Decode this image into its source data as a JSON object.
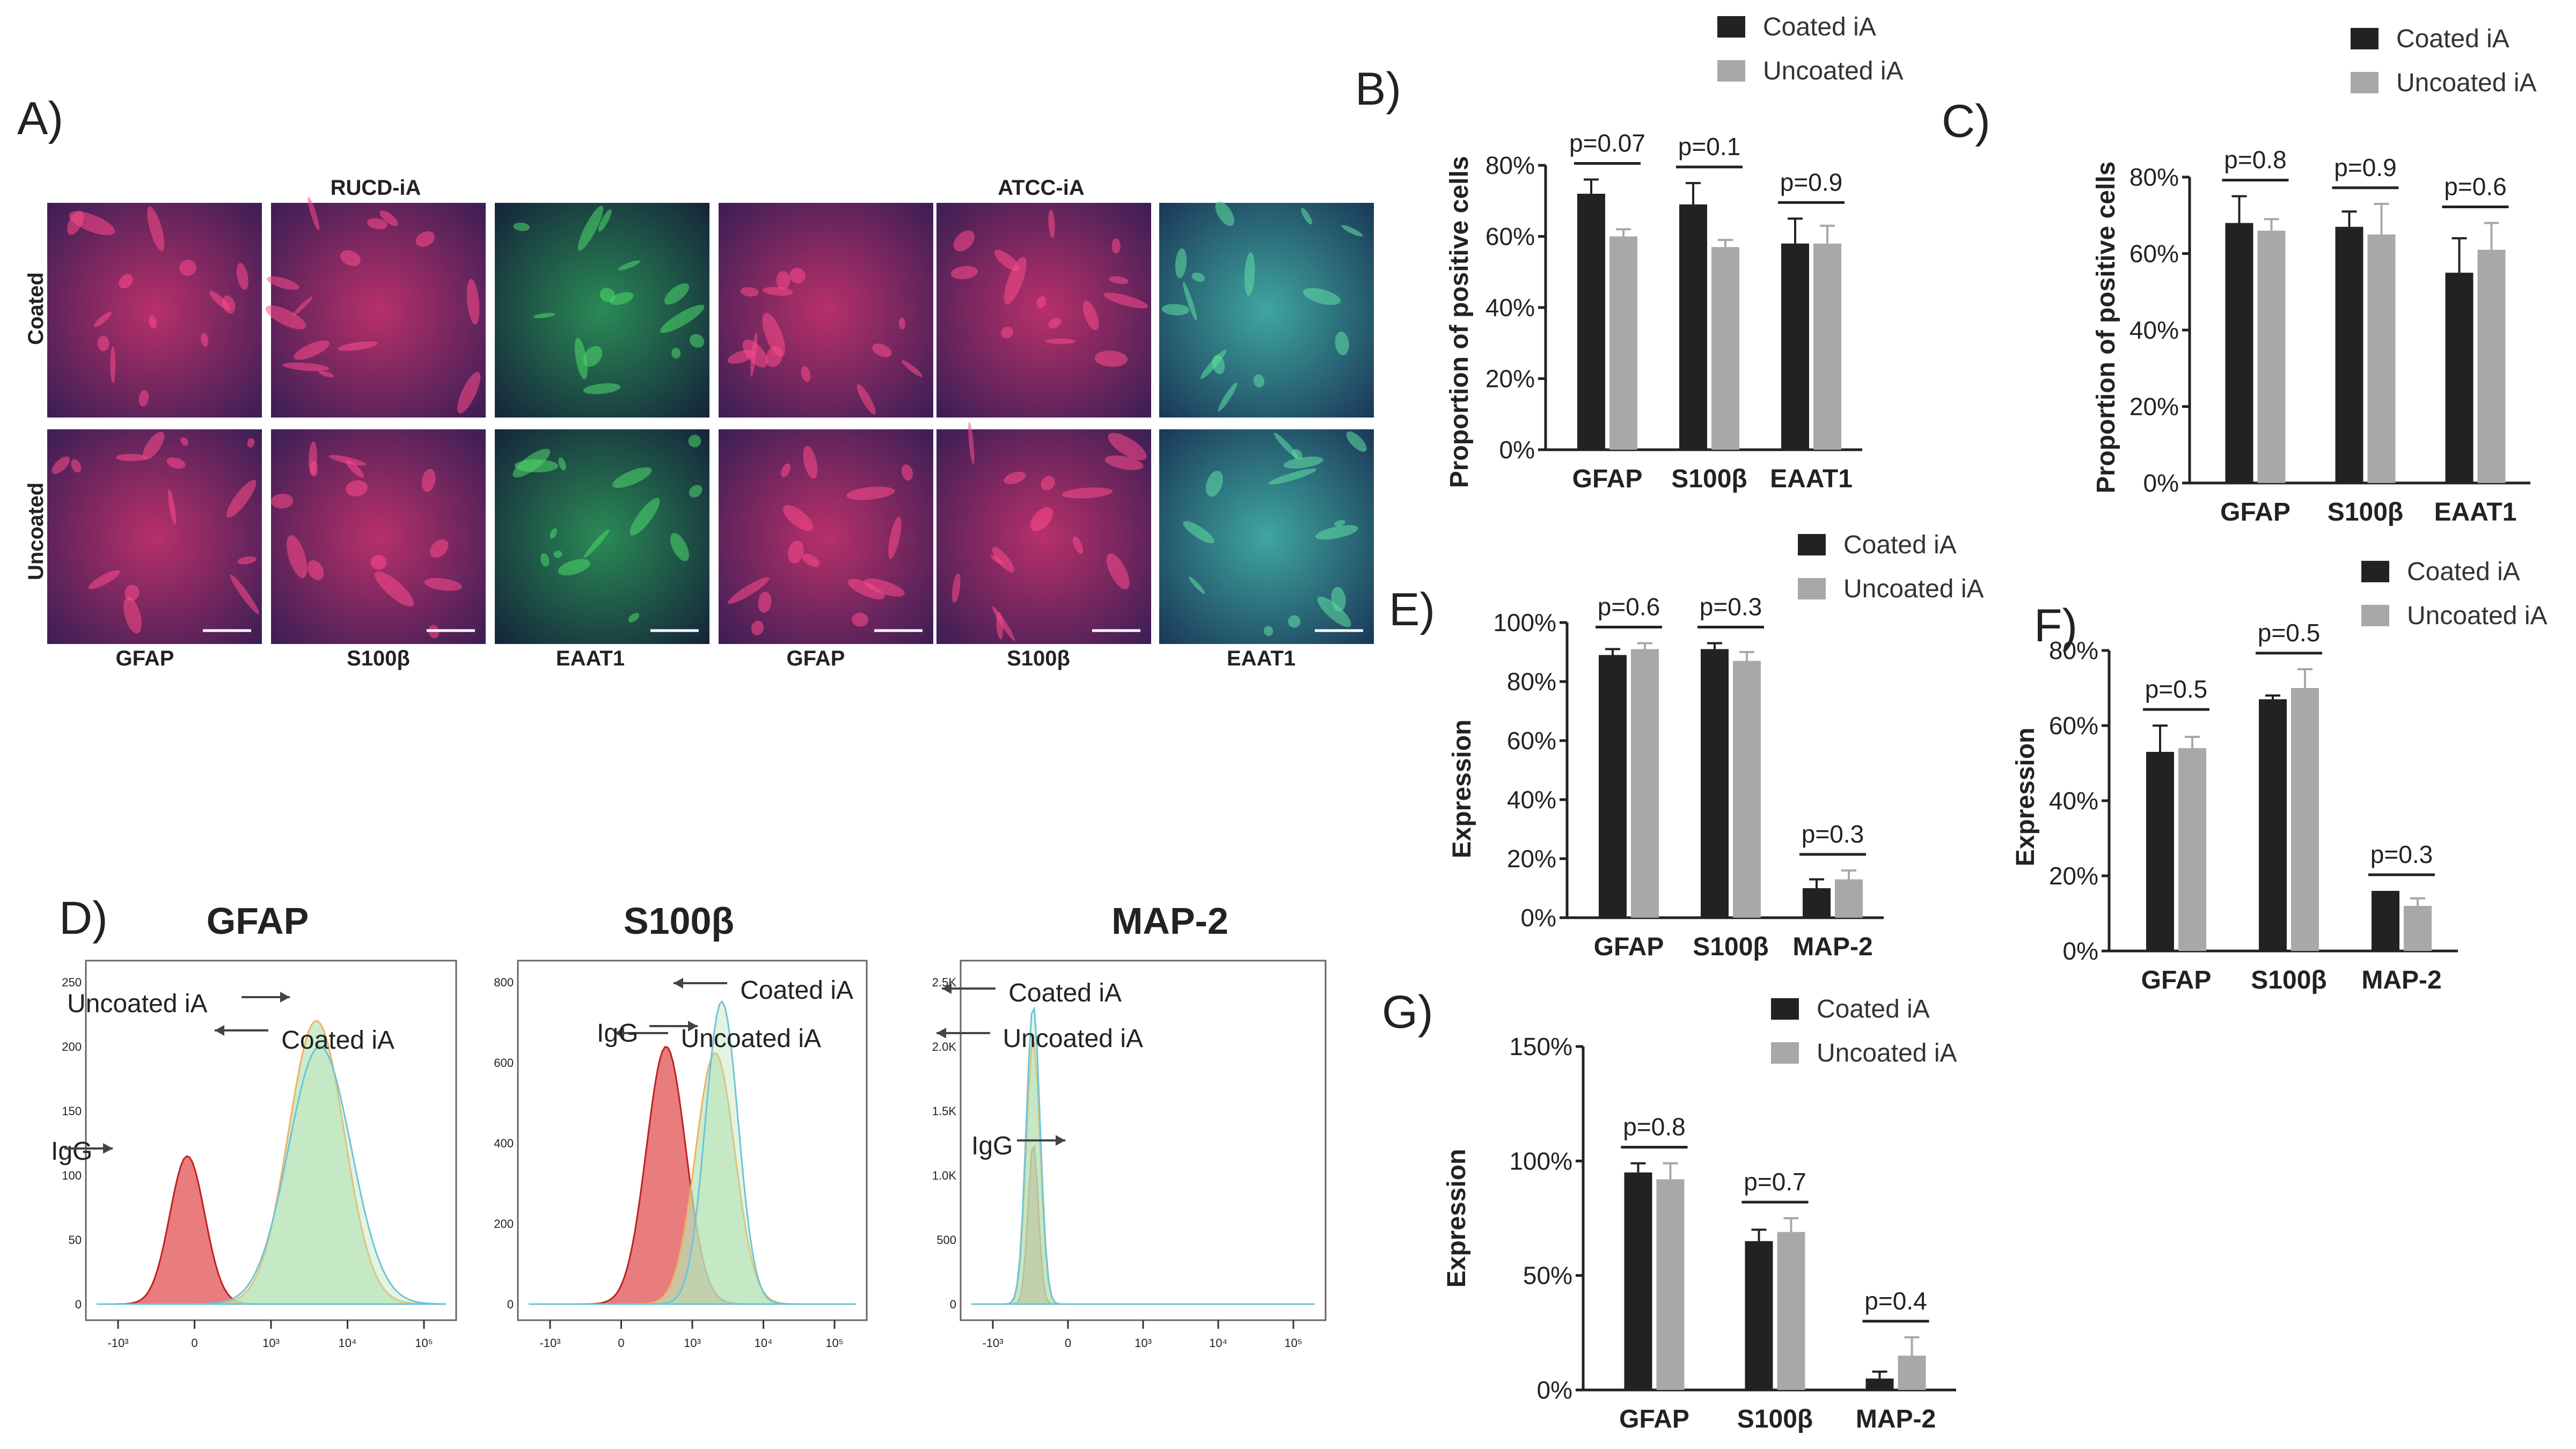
{
  "colors": {
    "coated": "#222222",
    "uncoated": "#a8a8a8",
    "axis": "#222222",
    "igg": "#e25050",
    "coated_flow": "#6cc5d8",
    "uncoated_flow": "#f0b060",
    "green_fill": "#b8e4b8"
  },
  "panel_A": {
    "letter": "A)",
    "groups": [
      "RUCD-iA",
      "ATCC-iA"
    ],
    "rows": [
      "Coated",
      "Uncoated"
    ],
    "markers": [
      "GFAP",
      "S100β",
      "EAAT1",
      "GFAP",
      "S100β",
      "EAAT1"
    ]
  },
  "legend": {
    "coated": "Coated iA",
    "uncoated": "Uncoated iA"
  },
  "panel_D": {
    "letter": "D)",
    "histograms": [
      {
        "title": "GFAP",
        "ticks_y": [
          "250",
          "200",
          "150",
          "100",
          "50",
          "0"
        ],
        "ticks_x": [
          "-10³",
          "0",
          "10³",
          "10⁴",
          "10⁵"
        ],
        "labels": {
          "uncoated": "Uncoated iA",
          "coated": "Coated iA",
          "igg": "IgG"
        }
      },
      {
        "title": "S100β",
        "ticks_y": [
          "800",
          "600",
          "400",
          "200",
          "0"
        ],
        "ticks_x": [
          "-10³",
          "0",
          "10³",
          "10⁴",
          "10⁵"
        ],
        "labels": {
          "coated": "Coated iA",
          "uncoated": "Uncoated iA",
          "igg": "IgG"
        }
      },
      {
        "title": "MAP-2",
        "ticks_y": [
          "2.5K",
          "2.0K",
          "1.5K",
          "1.0K",
          "500",
          "0"
        ],
        "ticks_x": [
          "-10³",
          "0",
          "10³",
          "10⁴",
          "10⁵"
        ],
        "labels": {
          "coated": "Coated iA",
          "uncoated": "Uncoated iA",
          "igg": "IgG"
        }
      }
    ]
  },
  "chart_data": [
    {
      "panel": "B)",
      "type": "bar",
      "ylabel": "Proportion of positive cells",
      "ylim": [
        0,
        80
      ],
      "yticks": [
        "0%",
        "20%",
        "40%",
        "60%",
        "80%"
      ],
      "categories": [
        "GFAP",
        "S100β",
        "EAAT1"
      ],
      "series": [
        {
          "name": "Coated iA",
          "values": [
            72,
            69,
            58
          ],
          "errors": [
            4,
            6,
            7
          ]
        },
        {
          "name": "Uncoated iA",
          "values": [
            60,
            57,
            58
          ],
          "errors": [
            2,
            2,
            5
          ]
        }
      ],
      "pvalues": [
        "p=0.07",
        "p=0.1",
        "p=0.9"
      ]
    },
    {
      "panel": "C)",
      "type": "bar",
      "ylabel": "Proportion of positive cells",
      "ylim": [
        0,
        80
      ],
      "yticks": [
        "0%",
        "20%",
        "40%",
        "60%",
        "80%"
      ],
      "categories": [
        "GFAP",
        "S100β",
        "EAAT1"
      ],
      "series": [
        {
          "name": "Coated iA",
          "values": [
            68,
            67,
            55
          ],
          "errors": [
            7,
            4,
            9
          ]
        },
        {
          "name": "Uncoated iA",
          "values": [
            66,
            65,
            61
          ],
          "errors": [
            3,
            8,
            7
          ]
        }
      ],
      "pvalues": [
        "p=0.8",
        "p=0.9",
        "p=0.6"
      ]
    },
    {
      "panel": "E)",
      "type": "bar",
      "ylabel": "Expression",
      "ylim": [
        0,
        100
      ],
      "yticks": [
        "0%",
        "20%",
        "40%",
        "60%",
        "80%",
        "100%"
      ],
      "categories": [
        "GFAP",
        "S100β",
        "MAP-2"
      ],
      "series": [
        {
          "name": "Coated iA",
          "values": [
            89,
            91,
            10
          ],
          "errors": [
            2,
            2,
            3
          ]
        },
        {
          "name": "Uncoated iA",
          "values": [
            91,
            87,
            13
          ],
          "errors": [
            2,
            3,
            3
          ]
        }
      ],
      "pvalues": [
        "p=0.6",
        "p=0.3",
        "p=0.3"
      ]
    },
    {
      "panel": "F)",
      "type": "bar",
      "ylabel": "Expression",
      "ylim": [
        0,
        80
      ],
      "yticks": [
        "0%",
        "20%",
        "40%",
        "60%",
        "80%"
      ],
      "categories": [
        "GFAP",
        "S100β",
        "MAP-2"
      ],
      "series": [
        {
          "name": "Coated iA",
          "values": [
            53,
            67,
            16
          ],
          "errors": [
            7,
            1,
            0
          ]
        },
        {
          "name": "Uncoated iA",
          "values": [
            54,
            70,
            12
          ],
          "errors": [
            3,
            5,
            2
          ]
        }
      ],
      "pvalues": [
        "p=0.5",
        "p=0.5",
        "p=0.3"
      ]
    },
    {
      "panel": "G)",
      "type": "bar",
      "ylabel": "Expression",
      "ylim": [
        0,
        150
      ],
      "yticks": [
        "0%",
        "50%",
        "100%",
        "150%"
      ],
      "categories": [
        "GFAP",
        "S100β",
        "MAP-2"
      ],
      "series": [
        {
          "name": "Coated iA",
          "values": [
            95,
            65,
            5
          ],
          "errors": [
            4,
            5,
            3
          ]
        },
        {
          "name": "Uncoated iA",
          "values": [
            92,
            69,
            15
          ],
          "errors": [
            7,
            6,
            8
          ]
        }
      ],
      "pvalues": [
        "p=0.8",
        "p=0.7",
        "p=0.4"
      ]
    }
  ]
}
